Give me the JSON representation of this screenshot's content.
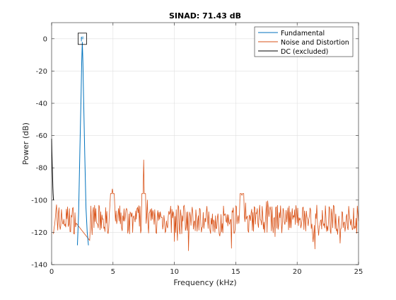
{
  "chart_data": {
    "type": "line",
    "title": "SINAD:  71.43 dB",
    "xlabel": "Frequency (kHz)",
    "ylabel": "Power (dB)",
    "xlim": [
      0,
      25
    ],
    "ylim": [
      -140,
      10
    ],
    "xticks": [
      "0",
      "5",
      "10",
      "15",
      "20",
      "25"
    ],
    "xtick_values": [
      0,
      5,
      10,
      15,
      20,
      25
    ],
    "yticks": [
      "0",
      "-20",
      "-40",
      "-60",
      "-80",
      "-100",
      "-120",
      "-140"
    ],
    "ytick_values": [
      0,
      -20,
      -40,
      -60,
      -80,
      -100,
      -120,
      -140
    ],
    "grid": true,
    "legend_position": "top-right",
    "fundamental_marker": {
      "label": "F",
      "x": 2.5,
      "y": 0
    },
    "series": [
      {
        "name": "Fundamental",
        "color": "#0072BD",
        "x": [
          2.1,
          2.2,
          2.3,
          2.4,
          2.45,
          2.5,
          2.55,
          2.6,
          2.7,
          2.8,
          2.9,
          3.0
        ],
        "y": [
          -128,
          -108,
          -70,
          -35,
          -15,
          -2,
          -15,
          -35,
          -72,
          -105,
          -120,
          -128
        ]
      },
      {
        "name": "Noise and Distortion",
        "color": "#D95319",
        "noise_floor": -112,
        "noise_range": [
          -137,
          -96
        ],
        "peaks": [
          {
            "x": 4.95,
            "y": -93
          },
          {
            "x": 7.5,
            "y": -75
          },
          {
            "x": 15.5,
            "y": -97
          }
        ]
      },
      {
        "name": "DC (excluded)",
        "color": "#000000",
        "x": [
          0,
          0.02,
          0.05,
          0.08,
          0.1,
          0.12,
          0.15
        ],
        "y": [
          -62,
          -70,
          -78,
          -86,
          -92,
          -96,
          -100
        ]
      }
    ]
  }
}
